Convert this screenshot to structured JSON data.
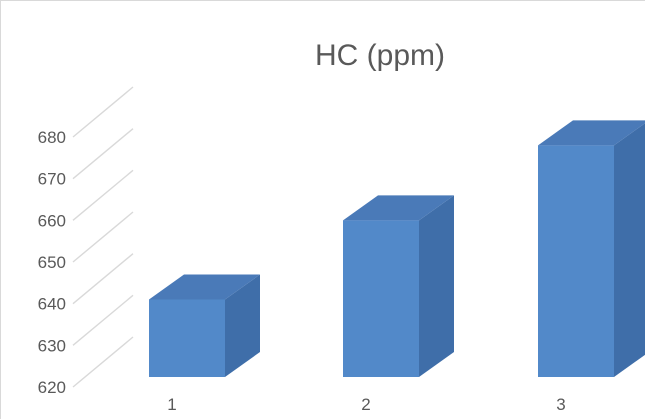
{
  "chart_data": {
    "type": "bar",
    "title": "HC (ppm)",
    "xlabel": "",
    "ylabel": "",
    "categories": [
      "1",
      "2",
      "3"
    ],
    "values": [
      641,
      660,
      678
    ],
    "yticks": [
      "620",
      "630",
      "640",
      "650",
      "660",
      "670",
      "680"
    ],
    "ylim": [
      620,
      690
    ],
    "grid": true,
    "style": "3d-column",
    "colors": {
      "bar_front": "#5289c9",
      "bar_top": "#4a7ab8",
      "bar_side": "#3f6ea9",
      "grid": "#d9d9d9",
      "text": "#595959"
    }
  }
}
